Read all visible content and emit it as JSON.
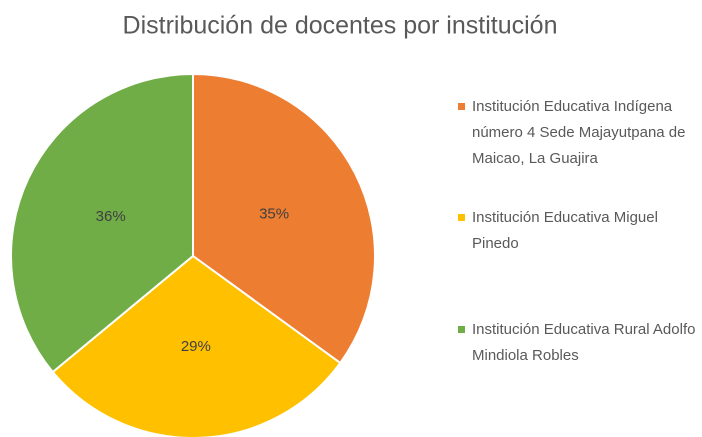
{
  "chart_data": {
    "type": "pie",
    "title": "Distribución de docentes por institución",
    "categories": [
      "Institución Educativa Indígena número 4 Sede Majayutpana de Maicao, La Guajira",
      "Institución Educativa Miguel Pinedo",
      "Institución Educativa Rural Adolfo Mindiola Robles"
    ],
    "values": [
      35,
      29,
      36
    ],
    "value_labels": [
      "35%",
      "29%",
      "36%"
    ],
    "colors": [
      "#ed7d31",
      "#ffc000",
      "#70ad47"
    ],
    "legend": "right"
  }
}
